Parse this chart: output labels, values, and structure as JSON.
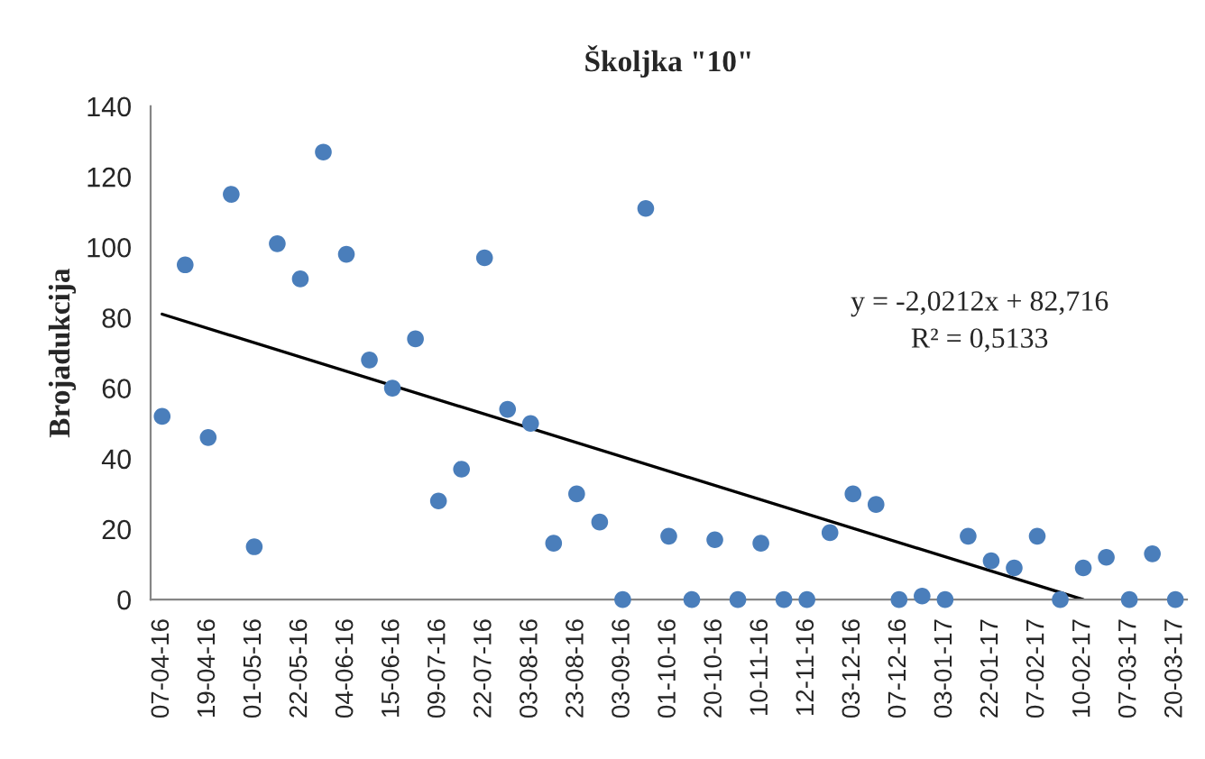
{
  "chart_data": {
    "type": "scatter",
    "title": "Školjka \"10\"",
    "ylabel": "Brojadukcija",
    "categories": [
      "07-04-16",
      null,
      "19-04-16",
      null,
      "01-05-16",
      null,
      "22-05-16",
      null,
      "04-06-16",
      null,
      "15-06-16",
      null,
      "09-07-16",
      null,
      "22-07-16",
      null,
      "03-08-16",
      null,
      "23-08-16",
      null,
      "03-09-16",
      null,
      "01-10-16",
      null,
      "20-10-16",
      null,
      "10-11-16",
      null,
      "12-11-16",
      null,
      "03-12-16",
      null,
      "07-12-16",
      null,
      "03-01-17",
      null,
      "22-01-17",
      null,
      "07-02-17",
      null,
      "10-02-17",
      null,
      "07-03-17",
      null,
      "20-03-17"
    ],
    "series": [
      {
        "color": "#4a7ebb",
        "marker": "circle",
        "values": [
          52,
          95,
          46,
          115,
          15,
          101,
          91,
          127,
          98,
          68,
          60,
          74,
          28,
          37,
          97,
          54,
          50,
          16,
          30,
          22,
          0,
          111,
          18,
          0,
          17,
          0,
          16,
          0,
          0,
          19,
          30,
          27,
          0,
          1,
          0,
          18,
          11,
          9,
          18,
          0,
          9,
          12,
          0,
          13,
          0
        ]
      },
      {
        "type": "line",
        "color": "#000000",
        "marker": "none",
        "values": [
          81,
          null,
          null,
          null,
          null,
          null,
          null,
          null,
          null,
          null,
          null,
          null,
          null,
          null,
          null,
          null,
          null,
          null,
          null,
          null,
          null,
          null,
          null,
          null,
          null,
          null,
          null,
          null,
          null,
          null,
          null,
          null,
          null,
          null,
          null,
          null,
          null,
          null,
          null,
          null,
          0,
          null,
          null,
          null,
          null
        ]
      }
    ],
    "ylim": [
      0,
      140
    ],
    "yticks": [
      0,
      20,
      40,
      60,
      80,
      100,
      120,
      140
    ],
    "grid": false,
    "legend": false,
    "annotations": [
      "y = -2,0212x + 82,716",
      "R² = 0,5133"
    ]
  }
}
